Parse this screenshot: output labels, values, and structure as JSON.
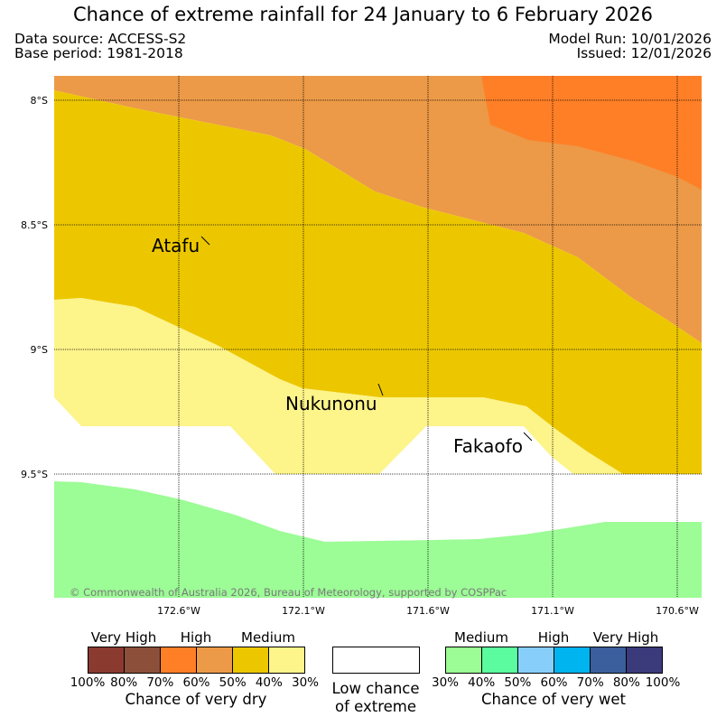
{
  "title": "Chance of extreme rainfall for 24 January to 6 February 2026",
  "header": {
    "data_source": "Data source: ACCESS-S2",
    "base_period": "Base period: 1981-2018",
    "model_run": "Model Run: 10/01/2026",
    "issued": "Issued: 12/01/2026"
  },
  "map": {
    "lat_labels": [
      "8°S",
      "8.5°S",
      "9°S",
      "9.5°S"
    ],
    "lon_labels": [
      "172.6°W",
      "172.1°W",
      "171.6°W",
      "171.1°W",
      "170.6°W"
    ],
    "places": [
      "Atafu",
      "Nukunonu",
      "Fakaofo"
    ],
    "copyright": "© Commonwealth of Australia 2026, Bureau of Meteorology, supported by COSPPac",
    "colors": {
      "dry_medium_light": "#fdf48a",
      "dry_medium": "#ecc700",
      "dry_high_light": "#ec9a47",
      "dry_high": "#ff7f27",
      "wet_medium_light": "#9cfc96",
      "neutral": "#ffffff"
    }
  },
  "legend": {
    "dry": {
      "colors": [
        "#8b3a30",
        "#8b4f3a",
        "#ff7f27",
        "#ec9a47",
        "#ecc700",
        "#fdf48a"
      ],
      "categories": [
        "Very High",
        "High",
        "Medium"
      ],
      "ticks": [
        "100%",
        "80%",
        "70%",
        "60%",
        "50%",
        "40%",
        "30%"
      ],
      "caption": "Chance of very dry"
    },
    "neutral": {
      "caption_line1": "Low chance",
      "caption_line2": "of extreme"
    },
    "wet": {
      "colors": [
        "#9cfc96",
        "#5bfc9f",
        "#87cefa",
        "#00b4ef",
        "#3a5f9c",
        "#3b3a7b"
      ],
      "categories": [
        "Medium",
        "High",
        "Very High"
      ],
      "ticks": [
        "30%",
        "40%",
        "50%",
        "60%",
        "70%",
        "80%",
        "100%"
      ],
      "caption": "Chance of very wet"
    }
  }
}
